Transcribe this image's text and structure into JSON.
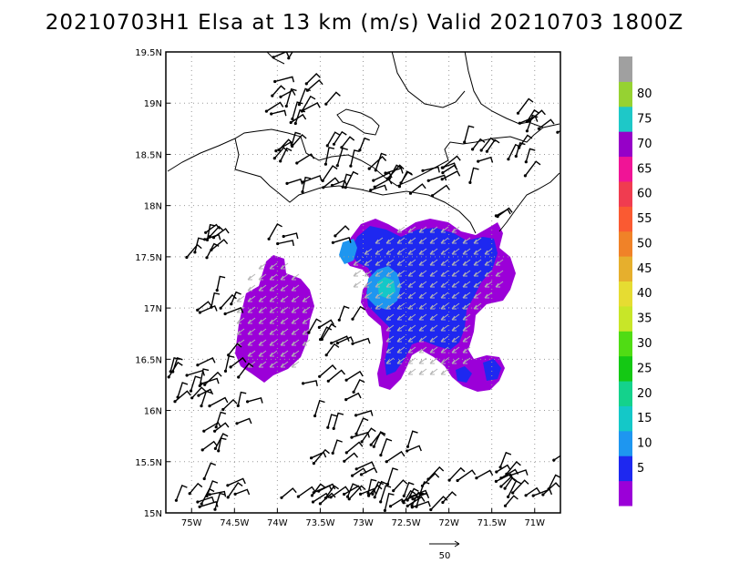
{
  "title": "20210703H1  Elsa at 13 km (m/s) Valid 20210703  1800Z",
  "map": {
    "x_ticks": [
      "75W",
      "74.5W",
      "74W",
      "73.5W",
      "73W",
      "72.5W",
      "72W",
      "71.5W",
      "71W"
    ],
    "y_ticks": [
      "15N",
      "15.5N",
      "16N",
      "16.5N",
      "17N",
      "17.5N",
      "18N",
      "18.5N",
      "19N",
      "19.5N"
    ],
    "lon_range": [
      -75.3,
      -70.7
    ],
    "lat_range": [
      15.0,
      19.5
    ],
    "grid": "dotted"
  },
  "colorbar": {
    "labels": [
      "5",
      "10",
      "15",
      "20",
      "25",
      "30",
      "35",
      "40",
      "45",
      "50",
      "55",
      "60",
      "65",
      "70",
      "75",
      "80"
    ],
    "colors": [
      "#9b00d8",
      "#1e28f0",
      "#1e96f0",
      "#14c8c8",
      "#14d28c",
      "#14c814",
      "#50dc14",
      "#c8e628",
      "#e6dc32",
      "#e6af2d",
      "#f08228",
      "#fa5a32",
      "#f03c50",
      "#f01496",
      "#9600c8",
      "#1ec8c8",
      "#96d232",
      "#a0a0a0"
    ]
  },
  "reference_vector": {
    "label": "50"
  },
  "chart_data": {
    "type": "heatmap",
    "title": "20210703H1  Elsa at 13 km (m/s) Valid 20210703  1800Z",
    "xlabel": "",
    "ylabel": "",
    "xlim": [
      -75.3,
      -70.7
    ],
    "ylim": [
      15.0,
      19.5
    ],
    "color_scale_m_s": [
      5,
      10,
      15,
      20,
      25,
      30,
      35,
      40,
      45,
      50,
      55,
      60,
      65,
      70,
      75,
      80
    ],
    "regions": [
      {
        "lon": -74.45,
        "lat": 16.95,
        "value": 5
      },
      {
        "lon": -72.55,
        "lat": 17.2,
        "value": 10
      },
      {
        "lon": -72.7,
        "lat": 17.05,
        "value": 20
      },
      {
        "lon": -71.9,
        "lat": 17.45,
        "value": 10
      }
    ]
  }
}
